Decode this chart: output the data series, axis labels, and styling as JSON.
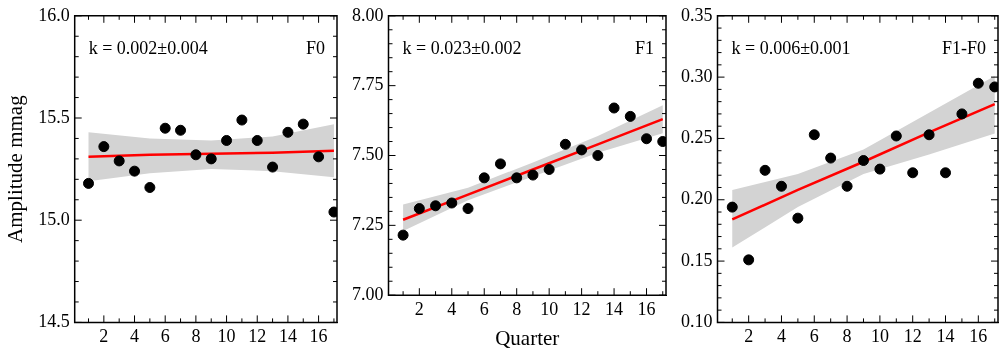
{
  "chart_data": [
    {
      "type": "scatter",
      "ylabel": "Amplitude mmag",
      "annotations": [
        "k = 0.002±0.004",
        "F0"
      ],
      "marker": "circle",
      "xlim": [
        0.1,
        17.2
      ],
      "ylim": [
        14.5,
        16.0
      ],
      "xticks": [
        {
          "value": 1,
          "label": null
        },
        2,
        {
          "value": 3,
          "label": null
        },
        4,
        {
          "value": 5,
          "label": null
        },
        6,
        {
          "value": 7,
          "label": null
        },
        8,
        {
          "value": 9,
          "label": null
        },
        10,
        {
          "value": 11,
          "label": null
        },
        12,
        {
          "value": 13,
          "label": null
        },
        14,
        {
          "value": 15,
          "label": null
        },
        16,
        {
          "value": 17,
          "label": null
        }
      ],
      "yticks": [
        {
          "value": 14.5,
          "label": "14.5"
        },
        {
          "value": 14.6,
          "label": null
        },
        {
          "value": 14.7,
          "label": null
        },
        {
          "value": 14.8,
          "label": null
        },
        {
          "value": 14.9,
          "label": null
        },
        {
          "value": 15.0,
          "label": "15.0"
        },
        {
          "value": 15.1,
          "label": null
        },
        {
          "value": 15.2,
          "label": null
        },
        {
          "value": 15.3,
          "label": null
        },
        {
          "value": 15.4,
          "label": null
        },
        {
          "value": 15.5,
          "label": "15.5"
        },
        {
          "value": 15.6,
          "label": null
        },
        {
          "value": 15.7,
          "label": null
        },
        {
          "value": 15.8,
          "label": null
        },
        {
          "value": 15.9,
          "label": null
        },
        {
          "value": 16.0,
          "label": "16.0"
        }
      ],
      "x": [
        1,
        2,
        3,
        4,
        5,
        6,
        7,
        8,
        9,
        10,
        11,
        12,
        13,
        14,
        15,
        16,
        17
      ],
      "series": [
        {
          "color": "#000000",
          "values": [
            15.18,
            15.36,
            15.29,
            15.24,
            15.16,
            15.45,
            15.44,
            15.32,
            15.3,
            15.39,
            15.49,
            15.39,
            15.26,
            15.43,
            15.47,
            15.31,
            15.04
          ]
        },
        {
          "type": "line",
          "marker": "none",
          "color": "#ff0000",
          "x": [
            1,
            5,
            9,
            13,
            17
          ],
          "values": [
            15.31,
            15.32,
            15.325,
            15.33,
            15.34
          ],
          "lower": [
            15.19,
            15.23,
            15.25,
            15.24,
            15.21
          ],
          "upper": [
            15.43,
            15.4,
            15.39,
            15.41,
            15.47
          ]
        }
      ]
    },
    {
      "type": "scatter",
      "xlabel": "Quarter",
      "annotations": [
        "k = 0.023±0.002",
        "F1"
      ],
      "marker": "circle",
      "xlim": [
        0.1,
        17.2
      ],
      "ylim": [
        7.0,
        8.0
      ],
      "xticks": [
        {
          "value": 1,
          "label": null
        },
        2,
        {
          "value": 3,
          "label": null
        },
        4,
        {
          "value": 5,
          "label": null
        },
        6,
        {
          "value": 7,
          "label": null
        },
        8,
        {
          "value": 9,
          "label": null
        },
        10,
        {
          "value": 11,
          "label": null
        },
        12,
        {
          "value": 13,
          "label": null
        },
        14,
        {
          "value": 15,
          "label": null
        },
        16,
        {
          "value": 17,
          "label": null
        }
      ],
      "yticks": [
        {
          "value": 7.0,
          "label": "7.00"
        },
        {
          "value": 7.05,
          "label": null
        },
        {
          "value": 7.1,
          "label": null
        },
        {
          "value": 7.15,
          "label": null
        },
        {
          "value": 7.2,
          "label": null
        },
        {
          "value": 7.25,
          "label": "7.25"
        },
        {
          "value": 7.3,
          "label": null
        },
        {
          "value": 7.35,
          "label": null
        },
        {
          "value": 7.4,
          "label": null
        },
        {
          "value": 7.45,
          "label": null
        },
        {
          "value": 7.5,
          "label": "7.50"
        },
        {
          "value": 7.55,
          "label": null
        },
        {
          "value": 7.6,
          "label": null
        },
        {
          "value": 7.65,
          "label": null
        },
        {
          "value": 7.7,
          "label": null
        },
        {
          "value": 7.75,
          "label": "7.75"
        },
        {
          "value": 7.8,
          "label": null
        },
        {
          "value": 7.85,
          "label": null
        },
        {
          "value": 7.9,
          "label": null
        },
        {
          "value": 7.95,
          "label": null
        },
        {
          "value": 8.0,
          "label": "8.00"
        }
      ],
      "x": [
        1,
        2,
        3,
        4,
        5,
        6,
        7,
        8,
        9,
        10,
        11,
        12,
        13,
        14,
        15,
        16,
        17
      ],
      "series": [
        {
          "color": "#000000",
          "values": [
            7.215,
            7.31,
            7.32,
            7.33,
            7.31,
            7.42,
            7.47,
            7.42,
            7.43,
            7.45,
            7.54,
            7.52,
            7.5,
            7.67,
            7.64,
            7.56,
            7.55
          ]
        },
        {
          "type": "line",
          "marker": "none",
          "color": "#ff0000",
          "x": [
            1,
            5,
            9,
            13,
            17
          ],
          "values": [
            7.27,
            7.36,
            7.45,
            7.54,
            7.63
          ],
          "lower": [
            7.23,
            7.34,
            7.425,
            7.51,
            7.58
          ],
          "upper": [
            7.325,
            7.385,
            7.475,
            7.57,
            7.68
          ]
        }
      ]
    },
    {
      "type": "scatter",
      "annotations": [
        "k = 0.006±0.001",
        "F1-F0"
      ],
      "marker": "circle",
      "xlim": [
        0.1,
        17.2
      ],
      "ylim": [
        0.1,
        0.35
      ],
      "xticks": [
        {
          "value": 1,
          "label": null
        },
        2,
        {
          "value": 3,
          "label": null
        },
        4,
        {
          "value": 5,
          "label": null
        },
        6,
        {
          "value": 7,
          "label": null
        },
        8,
        {
          "value": 9,
          "label": null
        },
        10,
        {
          "value": 11,
          "label": null
        },
        12,
        {
          "value": 13,
          "label": null
        },
        14,
        {
          "value": 15,
          "label": null
        },
        16,
        {
          "value": 17,
          "label": null
        }
      ],
      "yticks": [
        {
          "value": 0.1,
          "label": "0.10"
        },
        {
          "value": 0.11,
          "label": null
        },
        {
          "value": 0.12,
          "label": null
        },
        {
          "value": 0.13,
          "label": null
        },
        {
          "value": 0.14,
          "label": null
        },
        {
          "value": 0.15,
          "label": "0.15"
        },
        {
          "value": 0.16,
          "label": null
        },
        {
          "value": 0.17,
          "label": null
        },
        {
          "value": 0.18,
          "label": null
        },
        {
          "value": 0.19,
          "label": null
        },
        {
          "value": 0.2,
          "label": "0.20"
        },
        {
          "value": 0.21,
          "label": null
        },
        {
          "value": 0.22,
          "label": null
        },
        {
          "value": 0.23,
          "label": null
        },
        {
          "value": 0.24,
          "label": null
        },
        {
          "value": 0.25,
          "label": "0.25"
        },
        {
          "value": 0.26,
          "label": null
        },
        {
          "value": 0.27,
          "label": null
        },
        {
          "value": 0.28,
          "label": null
        },
        {
          "value": 0.29,
          "label": null
        },
        {
          "value": 0.3,
          "label": "0.30"
        },
        {
          "value": 0.31,
          "label": null
        },
        {
          "value": 0.32,
          "label": null
        },
        {
          "value": 0.33,
          "label": null
        },
        {
          "value": 0.34,
          "label": null
        },
        {
          "value": 0.35,
          "label": "0.35"
        }
      ],
      "x": [
        1,
        2,
        3,
        4,
        5,
        6,
        7,
        8,
        9,
        10,
        11,
        12,
        13,
        14,
        15,
        16,
        17
      ],
      "series": [
        {
          "color": "#000000",
          "values": [
            0.194,
            0.151,
            0.224,
            0.211,
            0.185,
            0.253,
            0.234,
            0.211,
            0.232,
            0.225,
            0.252,
            0.222,
            0.253,
            0.222,
            0.27,
            0.295,
            0.292
          ]
        },
        {
          "type": "line",
          "marker": "none",
          "color": "#ff0000",
          "x": [
            1,
            5,
            9,
            13,
            17
          ],
          "values": [
            0.184,
            0.208,
            0.231,
            0.255,
            0.278
          ],
          "lower": [
            0.161,
            0.194,
            0.221,
            0.237,
            0.254
          ],
          "upper": [
            0.208,
            0.221,
            0.241,
            0.271,
            0.301
          ]
        }
      ]
    }
  ]
}
